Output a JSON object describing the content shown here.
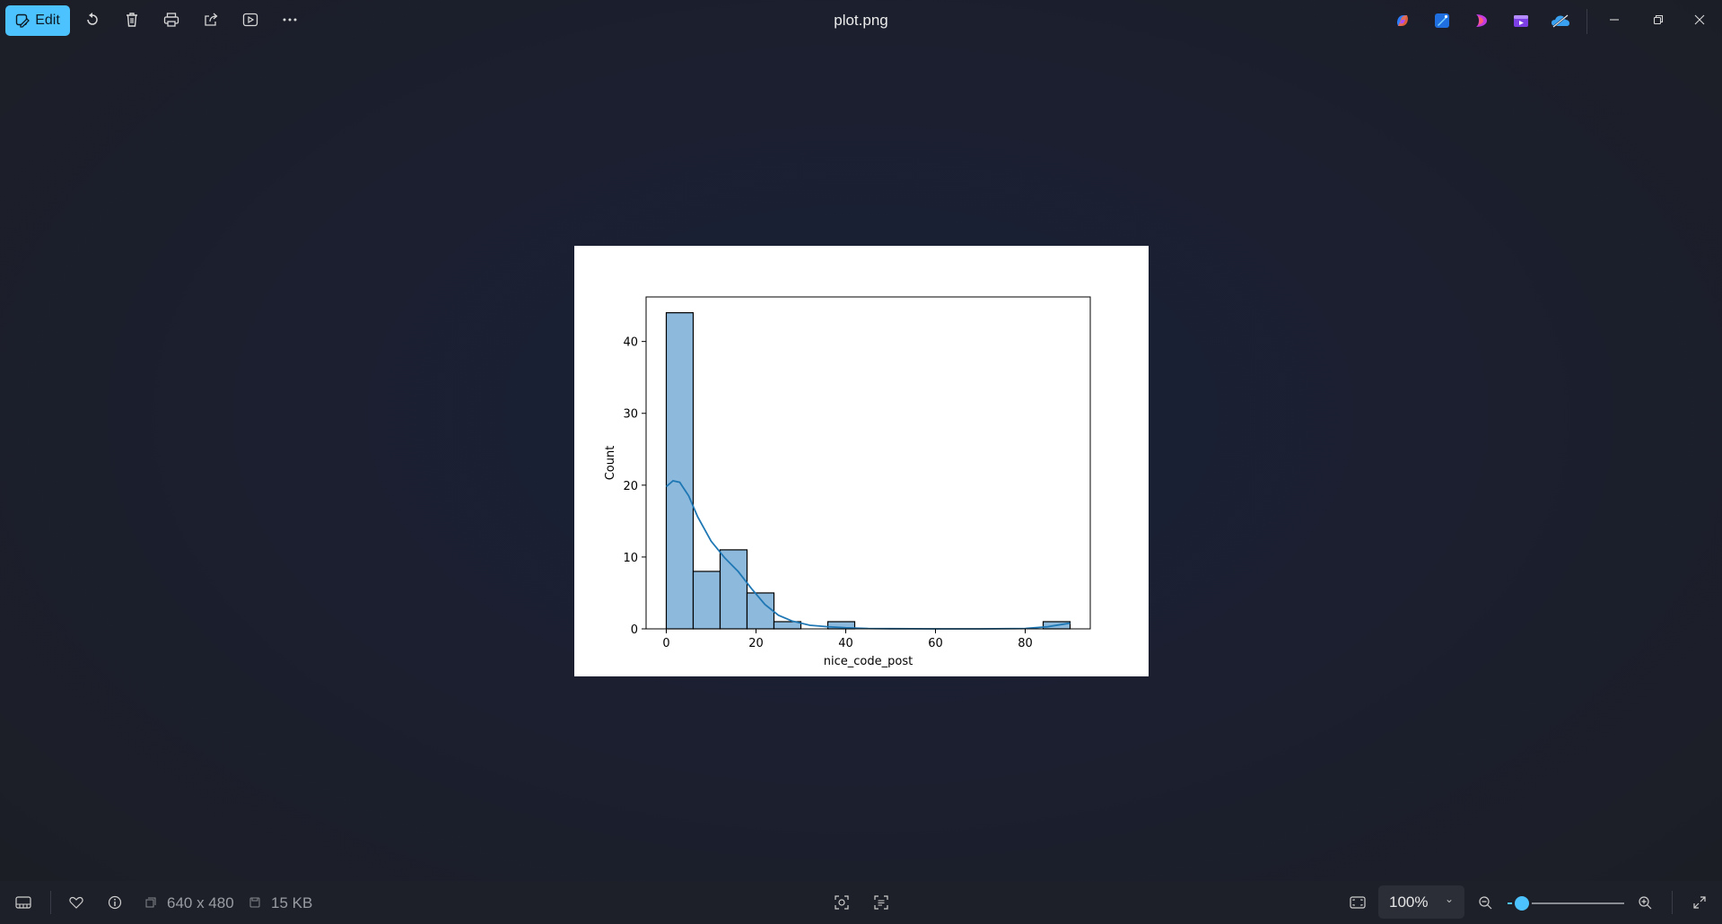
{
  "toolbar": {
    "edit_label": "Edit",
    "icons": [
      "rotate-icon",
      "delete-icon",
      "print-icon",
      "share-icon",
      "slideshow-icon",
      "more-icon"
    ]
  },
  "window": {
    "title": "plot.png",
    "app_icons": [
      "copilot-icon",
      "designer-icon",
      "clipchamp-icon",
      "video-editor-icon",
      "onedrive-icon"
    ]
  },
  "status": {
    "dimensions": "640 x 480",
    "file_size": "15 KB",
    "zoom": "100%",
    "zoom_level": 0.12
  },
  "colors": {
    "accent": "#4cc2ff",
    "bar_fill": "#8cb9dc",
    "kde_line": "#1f77b4"
  },
  "chart_data": {
    "type": "bar",
    "xlabel": "nice_code_post",
    "ylabel": "Count",
    "xlim": [
      -4.5,
      94.5
    ],
    "ylim": [
      0,
      46.2
    ],
    "x_ticks": [
      0,
      20,
      40,
      60,
      80
    ],
    "y_ticks": [
      0,
      10,
      20,
      30,
      40
    ],
    "bin_edges": [
      0,
      6,
      12,
      18,
      24,
      30,
      36,
      42,
      48,
      54,
      60,
      66,
      72,
      78,
      84,
      90
    ],
    "values": [
      44,
      8,
      11,
      5,
      1,
      0,
      1,
      0,
      0,
      0,
      0,
      0,
      0,
      0,
      1
    ],
    "kde": {
      "x": [
        0,
        1.5,
        3,
        5,
        7,
        10,
        13,
        16,
        19,
        22,
        25,
        28,
        32,
        36,
        40,
        45,
        50,
        60,
        70,
        80,
        85,
        88,
        90
      ],
      "y": [
        19.8,
        20.6,
        20.4,
        18.5,
        15.6,
        12.2,
        9.9,
        8.0,
        5.6,
        3.4,
        1.9,
        1.1,
        0.5,
        0.3,
        0.15,
        0.05,
        0.02,
        0.0,
        0.0,
        0.05,
        0.3,
        0.6,
        0.8
      ]
    },
    "grid": false,
    "legend": "none"
  }
}
